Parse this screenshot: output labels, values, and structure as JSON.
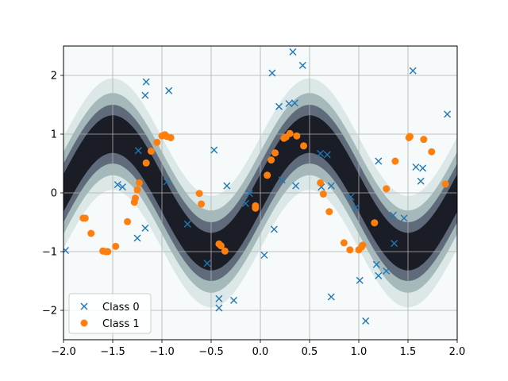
{
  "chart_data": {
    "type": "scatter",
    "title": "",
    "xlabel": "",
    "ylabel": "",
    "xlim": [
      -2.0,
      2.0
    ],
    "ylim": [
      -2.5,
      2.5
    ],
    "xticks": [
      -2.0,
      -1.5,
      -1.0,
      -0.5,
      0.0,
      0.5,
      1.0,
      1.5,
      2.0
    ],
    "xtick_labels": [
      "−2.0",
      "−1.5",
      "−1.0",
      "−0.5",
      "0.0",
      "0.5",
      "1.0",
      "1.5",
      "2.0"
    ],
    "yticks": [
      -2,
      -1,
      0,
      1,
      2
    ],
    "ytick_labels": [
      "−2",
      "−1",
      "0",
      "1",
      "2"
    ],
    "grid": true,
    "legend_position": "bottom-left",
    "background": "filled contour of a sinusoidal band (dark near decision boundary, light elsewhere), bone colormap",
    "series": [
      {
        "name": "Class 0",
        "marker": "x",
        "color": "#1f77b4",
        "points": [
          [
            -1.98,
            -0.98
          ],
          [
            -1.45,
            0.14
          ],
          [
            -1.4,
            0.1
          ],
          [
            -1.25,
            -0.77
          ],
          [
            -1.24,
            0.72
          ],
          [
            -1.17,
            -0.6
          ],
          [
            -1.17,
            1.66
          ],
          [
            -1.16,
            1.89
          ],
          [
            -0.93,
            1.74
          ],
          [
            -0.95,
            0.19
          ],
          [
            -0.74,
            -0.53
          ],
          [
            -0.54,
            -1.2
          ],
          [
            -0.47,
            0.73
          ],
          [
            -0.42,
            -1.8
          ],
          [
            -0.42,
            -1.96
          ],
          [
            -0.34,
            0.12
          ],
          [
            -0.27,
            -1.83
          ],
          [
            -0.15,
            -0.18
          ],
          [
            -0.11,
            -0.01
          ],
          [
            0.04,
            -1.06
          ],
          [
            0.12,
            2.04
          ],
          [
            0.14,
            -0.62
          ],
          [
            0.19,
            1.47
          ],
          [
            0.22,
            0.22
          ],
          [
            0.29,
            1.52
          ],
          [
            0.35,
            1.53
          ],
          [
            0.33,
            2.4
          ],
          [
            0.36,
            0.12
          ],
          [
            0.43,
            2.17
          ],
          [
            0.61,
            0.67
          ],
          [
            0.62,
            0.1
          ],
          [
            0.68,
            0.65
          ],
          [
            0.72,
            0.12
          ],
          [
            0.72,
            -1.77
          ],
          [
            0.92,
            -0.07
          ],
          [
            0.97,
            -0.25
          ],
          [
            1.01,
            -1.49
          ],
          [
            1.07,
            -2.18
          ],
          [
            1.18,
            -1.22
          ],
          [
            1.2,
            -1.41
          ],
          [
            1.2,
            0.54
          ],
          [
            1.28,
            -1.33
          ],
          [
            1.35,
            -0.38
          ],
          [
            1.36,
            -0.86
          ],
          [
            1.46,
            -0.43
          ],
          [
            1.55,
            2.08
          ],
          [
            1.58,
            0.44
          ],
          [
            1.63,
            0.2
          ],
          [
            1.65,
            0.42
          ],
          [
            1.9,
            1.34
          ]
        ]
      },
      {
        "name": "Class 1",
        "marker": "o",
        "color": "#ff7f0e",
        "points": [
          [
            -1.8,
            -0.43
          ],
          [
            -1.78,
            -0.43
          ],
          [
            -1.72,
            -0.69
          ],
          [
            -1.6,
            -0.99
          ],
          [
            -1.57,
            -1.0
          ],
          [
            -1.55,
            -1.0
          ],
          [
            -1.47,
            -0.91
          ],
          [
            -1.35,
            -0.49
          ],
          [
            -1.28,
            -0.16
          ],
          [
            -1.27,
            -0.09
          ],
          [
            -1.25,
            0.05
          ],
          [
            -1.23,
            0.17
          ],
          [
            -1.16,
            0.51
          ],
          [
            -1.11,
            0.71
          ],
          [
            -1.05,
            0.86
          ],
          [
            -1.0,
            0.97
          ],
          [
            -0.97,
            0.99
          ],
          [
            -0.95,
            0.96
          ],
          [
            -0.91,
            0.94
          ],
          [
            -0.62,
            -0.01
          ],
          [
            -0.6,
            -0.19
          ],
          [
            -0.42,
            -0.87
          ],
          [
            -0.4,
            -0.9
          ],
          [
            -0.36,
            -0.99
          ],
          [
            -0.05,
            -0.22
          ],
          [
            -0.05,
            -0.26
          ],
          [
            0.07,
            0.3
          ],
          [
            0.11,
            0.56
          ],
          [
            0.15,
            0.68
          ],
          [
            0.24,
            0.93
          ],
          [
            0.26,
            0.95
          ],
          [
            0.3,
            1.01
          ],
          [
            0.37,
            0.97
          ],
          [
            0.44,
            0.8
          ],
          [
            0.61,
            0.17
          ],
          [
            0.64,
            -0.02
          ],
          [
            0.7,
            -0.32
          ],
          [
            0.85,
            -0.85
          ],
          [
            0.91,
            -0.97
          ],
          [
            1.0,
            -0.97
          ],
          [
            1.03,
            -0.92
          ],
          [
            1.04,
            -0.89
          ],
          [
            1.16,
            -0.51
          ],
          [
            1.28,
            0.07
          ],
          [
            1.37,
            0.54
          ],
          [
            1.51,
            0.94
          ],
          [
            1.52,
            0.96
          ],
          [
            1.66,
            0.91
          ],
          [
            1.74,
            0.7
          ],
          [
            1.88,
            0.15
          ]
        ]
      }
    ]
  }
}
